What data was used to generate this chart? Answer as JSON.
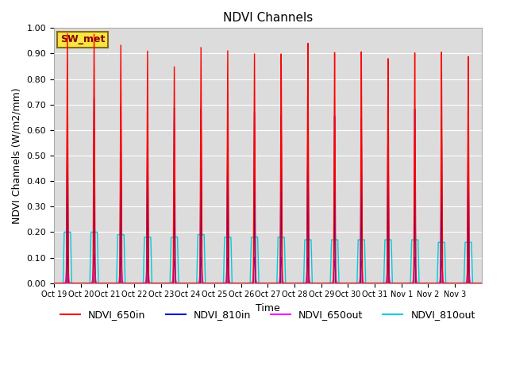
{
  "title": "NDVI Channels",
  "xlabel": "Time",
  "ylabel": "NDVI Channels (W/m2/mm)",
  "ylim": [
    0.0,
    1.0
  ],
  "yticks": [
    0.0,
    0.1,
    0.2,
    0.3,
    0.4,
    0.5,
    0.6,
    0.7,
    0.8,
    0.9,
    1.0
  ],
  "xtick_labels": [
    "Oct 19",
    "Oct 20",
    "Oct 21",
    "Oct 22",
    "Oct 23",
    "Oct 24",
    "Oct 25",
    "Oct 26",
    "Oct 27",
    "Oct 28",
    "Oct 29",
    "Oct 30",
    "Oct 31",
    "Nov 1",
    "Nov 2",
    "Nov 3"
  ],
  "bg_color": "#dcdcdc",
  "legend_label": "SW_met",
  "legend_label_bg": "#f5e642",
  "legend_label_border": "#8b6914",
  "series": {
    "NDVI_650in": {
      "color": "#ff0000",
      "lw": 1.0
    },
    "NDVI_810in": {
      "color": "#0000dd",
      "lw": 1.0
    },
    "NDVI_650out": {
      "color": "#ff00ff",
      "lw": 1.0
    },
    "NDVI_810out": {
      "color": "#00ccdd",
      "lw": 1.0
    }
  },
  "peaks_650in": [
    0.98,
    0.98,
    0.94,
    0.92,
    0.86,
    0.94,
    0.93,
    0.92,
    0.92,
    0.96,
    0.92,
    0.92,
    0.89,
    0.91,
    0.91,
    0.89
  ],
  "peaks_810in": [
    0.74,
    0.73,
    0.7,
    0.7,
    0.7,
    0.7,
    0.69,
    0.69,
    0.68,
    0.71,
    0.67,
    0.66,
    0.69,
    0.69,
    0.65,
    0.65
  ],
  "peaks_650out": [
    0.11,
    0.11,
    0.1,
    0.09,
    0.09,
    0.1,
    0.1,
    0.1,
    0.1,
    0.1,
    0.09,
    0.09,
    0.09,
    0.1,
    0.09,
    0.09
  ],
  "peaks_810out": [
    0.2,
    0.2,
    0.19,
    0.18,
    0.18,
    0.19,
    0.18,
    0.18,
    0.18,
    0.17,
    0.17,
    0.17,
    0.17,
    0.17,
    0.16,
    0.16
  ],
  "n_days": 16,
  "pts_per_day": 500
}
